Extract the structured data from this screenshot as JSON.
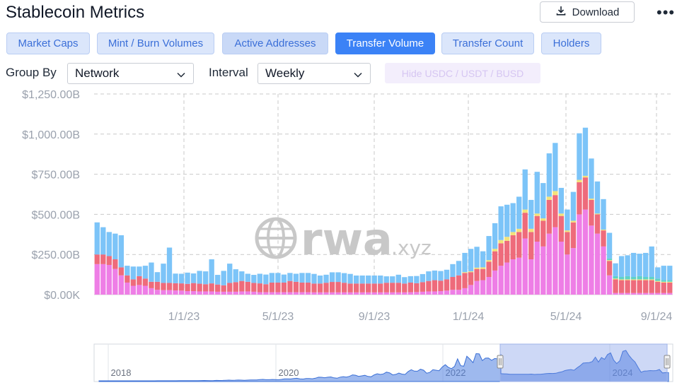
{
  "header": {
    "title": "Stablecoin Metrics",
    "download_label": "Download",
    "more_label": "•••"
  },
  "tabs": [
    {
      "label": "Market Caps",
      "active": false
    },
    {
      "label": "Mint / Burn Volumes",
      "active": false
    },
    {
      "label": "Active Addresses",
      "active": false
    },
    {
      "label": "Transfer Volume",
      "active": true
    },
    {
      "label": "Transfer Count",
      "active": false
    },
    {
      "label": "Holders",
      "active": false
    }
  ],
  "controls": {
    "group_by_label": "Group By",
    "group_by_value": "Network",
    "interval_label": "Interval",
    "interval_value": "Weekly",
    "hide_label": "Hide USDC / USDT / BUSD"
  },
  "watermark": {
    "text": "rwa",
    "suffix": ".xyz"
  },
  "navigator": {
    "labels": [
      "2018",
      "2020",
      "2022",
      "2024"
    ]
  },
  "colors": {
    "accent": "#3b82f6",
    "series_blue": "#7cc4f8",
    "series_red": "#ee6b7b",
    "series_pink": "#ee7ee6",
    "series_yellow": "#f3e27a",
    "series_teal": "#5fd3c6",
    "navigator_fill": "#4f7fe0"
  },
  "chart_data": {
    "type": "bar",
    "stacked": true,
    "y_ticks": [
      "$1,250.00B",
      "$1,000.00B",
      "$750.00B",
      "$500.00B",
      "$250.00B",
      "$0.00K"
    ],
    "ylim": [
      0,
      1250
    ],
    "x_ticks": [
      "1/1/23",
      "5/1/23",
      "9/1/23",
      "1/1/24",
      "5/1/24",
      "9/1/24"
    ],
    "grid": true,
    "legend": "none",
    "series": [
      {
        "color": "#ee7ee6",
        "values": [
          190,
          190,
          185,
          160,
          120,
          75,
          55,
          60,
          55,
          40,
          30,
          28,
          28,
          26,
          25,
          22,
          22,
          20,
          20,
          20,
          18,
          18,
          18,
          18,
          20,
          20,
          18,
          15,
          15,
          15,
          15,
          15,
          15,
          15,
          15,
          15,
          14,
          14,
          14,
          14,
          14,
          14,
          14,
          14,
          14,
          14,
          14,
          14,
          14,
          14,
          14,
          14,
          15,
          16,
          18,
          20,
          20,
          22,
          25,
          30,
          30,
          40,
          60,
          85,
          90,
          110,
          150,
          180,
          200,
          220,
          230,
          350,
          220,
          330,
          300,
          380,
          420,
          330,
          250,
          290,
          500,
          530,
          430,
          380,
          300,
          120,
          10,
          10,
          10,
          10,
          10,
          10,
          10,
          10,
          10,
          10
        ]
      },
      {
        "color": "#ee6b7b",
        "values": [
          60,
          60,
          55,
          60,
          50,
          45,
          40,
          55,
          45,
          40,
          50,
          45,
          45,
          45,
          45,
          45,
          50,
          48,
          45,
          50,
          45,
          40,
          55,
          60,
          65,
          60,
          55,
          55,
          50,
          60,
          60,
          60,
          70,
          65,
          60,
          60,
          55,
          55,
          60,
          65,
          65,
          60,
          55,
          55,
          55,
          55,
          55,
          55,
          60,
          60,
          60,
          55,
          60,
          55,
          60,
          65,
          70,
          65,
          70,
          80,
          90,
          95,
          80,
          75,
          70,
          95,
          120,
          140,
          135,
          150,
          160,
          160,
          170,
          160,
          160,
          210,
          200,
          160,
          140,
          160,
          200,
          200,
          160,
          120,
          100,
          90,
          85,
          80,
          80,
          80,
          80,
          80,
          80,
          70,
          65,
          65
        ]
      },
      {
        "color": "#f3e27a",
        "values": [
          0,
          0,
          0,
          0,
          0,
          0,
          0,
          0,
          0,
          0,
          0,
          0,
          0,
          0,
          0,
          0,
          0,
          0,
          0,
          0,
          0,
          0,
          0,
          0,
          0,
          0,
          0,
          0,
          0,
          0,
          0,
          0,
          0,
          0,
          0,
          0,
          0,
          0,
          0,
          0,
          0,
          0,
          0,
          0,
          0,
          0,
          0,
          0,
          0,
          0,
          0,
          0,
          0,
          0,
          0,
          0,
          0,
          0,
          0,
          0,
          0,
          5,
          5,
          8,
          10,
          10,
          15,
          20,
          25,
          20,
          20,
          20,
          20,
          15,
          15,
          20,
          25,
          15,
          10,
          10,
          15,
          10,
          8,
          5,
          5,
          5,
          5,
          5,
          5,
          5,
          5,
          5,
          5,
          5,
          5,
          5
        ]
      },
      {
        "color": "#5fd3c6",
        "values": [
          0,
          0,
          0,
          0,
          0,
          0,
          0,
          0,
          0,
          0,
          0,
          0,
          0,
          0,
          0,
          0,
          0,
          0,
          0,
          0,
          0,
          0,
          0,
          0,
          0,
          0,
          0,
          0,
          0,
          0,
          0,
          0,
          0,
          0,
          0,
          0,
          0,
          0,
          0,
          0,
          0,
          0,
          0,
          0,
          0,
          0,
          0,
          0,
          0,
          0,
          0,
          0,
          0,
          0,
          0,
          0,
          0,
          0,
          0,
          0,
          0,
          0,
          0,
          0,
          0,
          0,
          0,
          0,
          0,
          0,
          0,
          0,
          0,
          0,
          0,
          0,
          0,
          0,
          0,
          0,
          0,
          0,
          0,
          0,
          0,
          10,
          15,
          15,
          20,
          15,
          20,
          15,
          15,
          15,
          10,
          10
        ]
      },
      {
        "color": "#7cc4f8",
        "values": [
          200,
          170,
          150,
          160,
          200,
          60,
          80,
          60,
          80,
          120,
          60,
          120,
          220,
          60,
          60,
          70,
          60,
          80,
          80,
          150,
          60,
          90,
          120,
          80,
          60,
          50,
          50,
          60,
          60,
          60,
          60,
          50,
          50,
          50,
          60,
          60,
          60,
          50,
          50,
          60,
          60,
          60,
          60,
          50,
          50,
          50,
          50,
          50,
          40,
          40,
          50,
          40,
          40,
          45,
          50,
          60,
          60,
          60,
          60,
          80,
          90,
          120,
          140,
          130,
          100,
          150,
          160,
          210,
          200,
          180,
          200,
          250,
          180,
          260,
          220,
          270,
          300,
          160,
          130,
          180,
          290,
          300,
          250,
          200,
          190,
          160,
          80,
          130,
          130,
          150,
          140,
          150,
          190,
          70,
          90,
          90
        ]
      }
    ]
  }
}
